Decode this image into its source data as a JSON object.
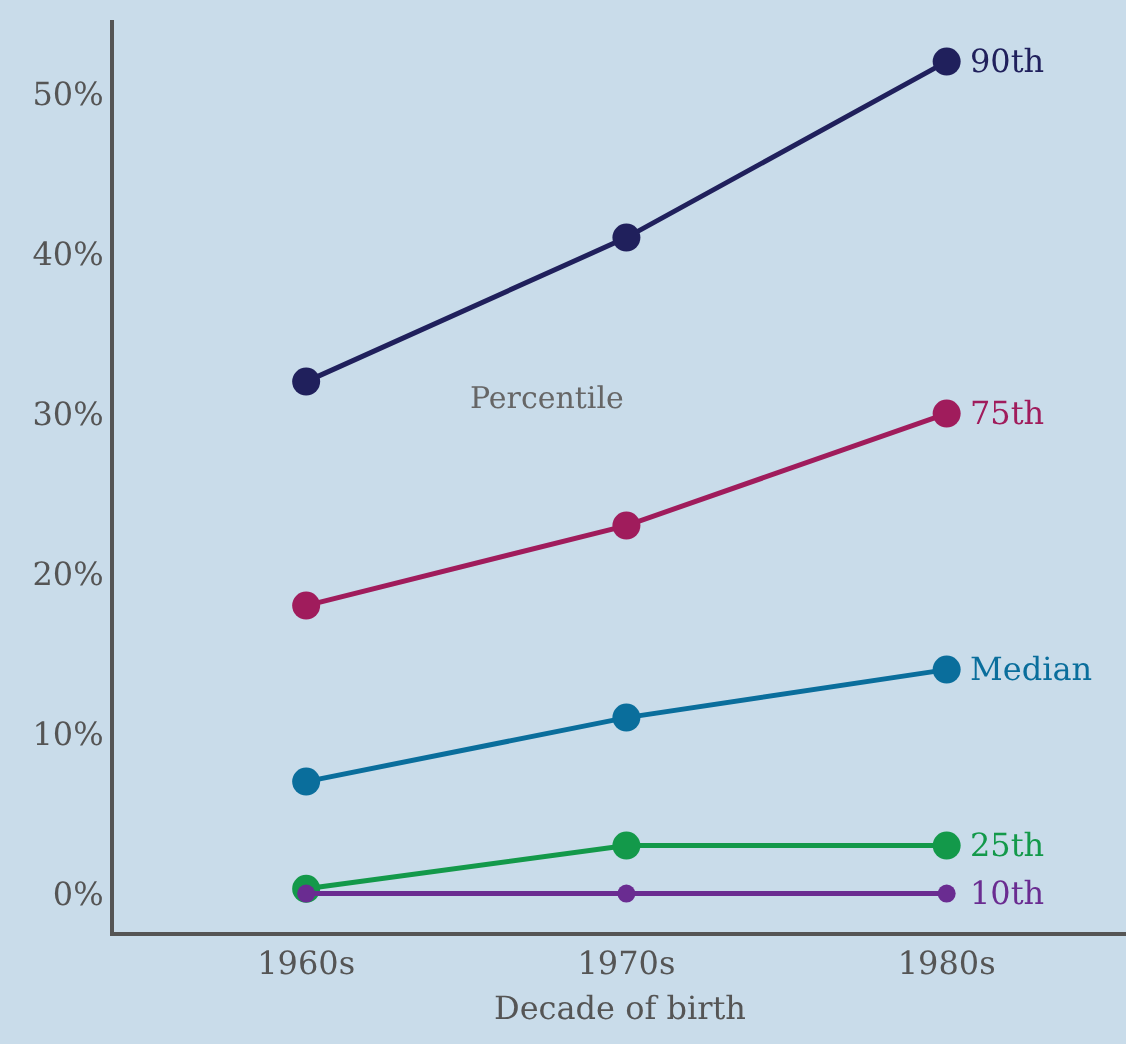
{
  "chart_data": {
    "type": "line",
    "xlabel": "Decade of birth",
    "legend_title": "Percentile",
    "categories": [
      "1960s",
      "1970s",
      "1980s"
    ],
    "series": [
      {
        "name": "90th",
        "color": "#20205c",
        "values": [
          32,
          41,
          52
        ]
      },
      {
        "name": "75th",
        "color": "#a01c5c",
        "values": [
          18,
          23,
          30
        ]
      },
      {
        "name": "Median",
        "color": "#0a6e9c",
        "values": [
          7,
          11,
          14
        ]
      },
      {
        "name": "25th",
        "color": "#13994a",
        "values": [
          0.3,
          3,
          3
        ]
      },
      {
        "name": "10th",
        "color": "#6a2c91",
        "values": [
          0,
          0,
          0
        ]
      }
    ],
    "ylim": [
      -2.4,
      54.6
    ],
    "yticks": [
      {
        "value": 0,
        "label": "0%"
      },
      {
        "value": 10,
        "label": "10%"
      },
      {
        "value": 20,
        "label": "20%"
      },
      {
        "value": 30,
        "label": "30%"
      },
      {
        "value": 40,
        "label": "40%"
      },
      {
        "value": 50,
        "label": "50%"
      }
    ],
    "grid": false,
    "legend": false,
    "marker": "circle",
    "line_style": "solid"
  }
}
